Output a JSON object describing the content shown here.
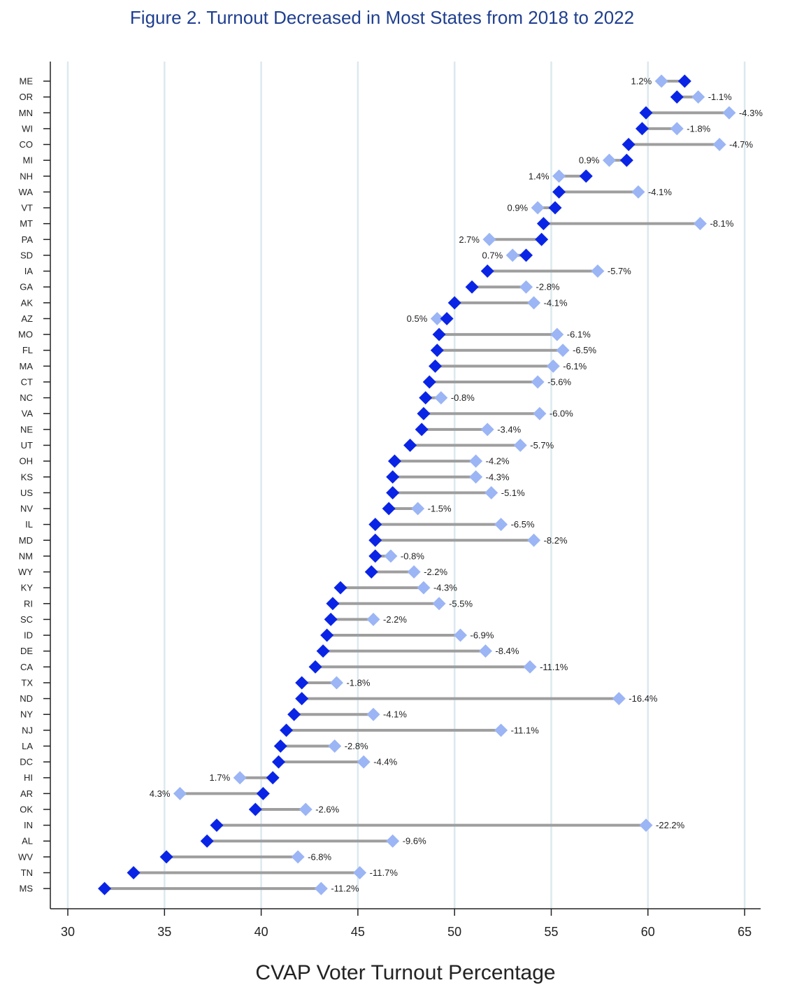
{
  "chart_data": {
    "type": "dot-range",
    "title": "Figure 2. Turnout Decreased in Most States from 2018 to 2022",
    "xlabel": "CVAP Voter Turnout Percentage",
    "ylabel": "",
    "xlim": [
      29,
      66
    ],
    "xticks": [
      30,
      35,
      40,
      45,
      50,
      55,
      60,
      65
    ],
    "grid": "vertical",
    "colors": {
      "series_2022": "#0a24e6",
      "series_2018": "#9bb5f5",
      "connector": "#9e9e9e",
      "grid": "#dce9ee",
      "title": "#1f3f8f"
    },
    "categories": [
      "ME",
      "OR",
      "MN",
      "WI",
      "CO",
      "MI",
      "NH",
      "WA",
      "VT",
      "MT",
      "PA",
      "SD",
      "IA",
      "GA",
      "AK",
      "AZ",
      "MO",
      "FL",
      "MA",
      "CT",
      "NC",
      "VA",
      "NE",
      "UT",
      "OH",
      "KS",
      "US",
      "NV",
      "IL",
      "MD",
      "NM",
      "WY",
      "KY",
      "RI",
      "SC",
      "ID",
      "DE",
      "CA",
      "TX",
      "ND",
      "NY",
      "NJ",
      "LA",
      "DC",
      "HI",
      "AR",
      "OK",
      "IN",
      "AL",
      "WV",
      "TN",
      "MS"
    ],
    "series": [
      {
        "values": [
          61.9,
          61.5,
          59.9,
          59.7,
          59.0,
          58.9,
          56.8,
          55.4,
          55.2,
          54.6,
          54.5,
          53.7,
          51.7,
          50.9,
          50.0,
          49.6,
          49.2,
          49.1,
          49.0,
          48.7,
          48.5,
          48.4,
          48.3,
          47.7,
          46.9,
          46.8,
          46.8,
          46.6,
          45.9,
          45.9,
          45.9,
          45.7,
          44.1,
          43.7,
          43.6,
          43.4,
          43.2,
          42.8,
          42.1,
          42.1,
          41.7,
          41.3,
          41.0,
          40.9,
          40.6,
          40.1,
          39.7,
          37.7,
          37.2,
          35.1,
          33.4,
          31.9
        ]
      },
      {
        "values": [
          60.7,
          62.6,
          64.2,
          61.5,
          63.7,
          58.0,
          55.4,
          59.5,
          54.3,
          62.7,
          51.8,
          53.0,
          57.4,
          53.7,
          54.1,
          49.1,
          55.3,
          55.6,
          55.1,
          54.3,
          49.3,
          54.4,
          51.7,
          53.4,
          51.1,
          51.1,
          51.9,
          48.1,
          52.4,
          54.1,
          46.7,
          47.9,
          48.4,
          49.2,
          45.8,
          50.3,
          51.6,
          53.9,
          43.9,
          58.5,
          45.8,
          52.4,
          43.8,
          45.3,
          38.9,
          35.8,
          42.3,
          59.9,
          46.8,
          41.9,
          45.1,
          43.1
        ]
      }
    ],
    "change_labels": [
      "1.2%",
      "-1.1%",
      "-4.3%",
      "-1.8%",
      "-4.7%",
      "0.9%",
      "1.4%",
      "-4.1%",
      "0.9%",
      "-8.1%",
      "2.7%",
      "0.7%",
      "-5.7%",
      "-2.8%",
      "-4.1%",
      "0.5%",
      "-6.1%",
      "-6.5%",
      "-6.1%",
      "-5.6%",
      "-0.8%",
      "-6.0%",
      "-3.4%",
      "-5.7%",
      "-4.2%",
      "-4.3%",
      "-5.1%",
      "-1.5%",
      "-6.5%",
      "-8.2%",
      "-0.8%",
      "-2.2%",
      "-4.3%",
      "-5.5%",
      "-2.2%",
      "-6.9%",
      "-8.4%",
      "-11.1%",
      "-1.8%",
      "-16.4%",
      "-4.1%",
      "-11.1%",
      "-2.8%",
      "-4.4%",
      "1.7%",
      "4.3%",
      "-2.6%",
      "-22.2%",
      "-9.6%",
      "-6.8%",
      "-11.7%",
      "-11.2%"
    ]
  }
}
